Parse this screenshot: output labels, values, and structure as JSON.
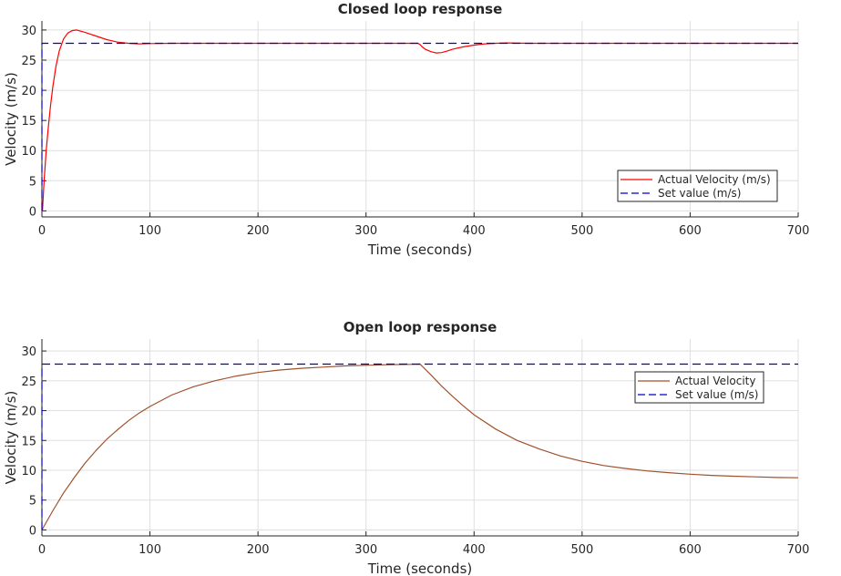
{
  "chart_data": [
    {
      "type": "line",
      "title": "Closed loop response",
      "xlabel": "Time (seconds)",
      "ylabel": "Velocity (m/s)",
      "xlim": [
        0,
        700
      ],
      "ylim": [
        -1,
        31.5
      ],
      "xticks": [
        0,
        100,
        200,
        300,
        400,
        500,
        600,
        700
      ],
      "yticks": [
        0,
        5,
        10,
        15,
        20,
        25,
        30
      ],
      "grid": true,
      "legend_position": "lower-right",
      "series": [
        {
          "name": "Actual Velocity (m/s)",
          "color": "#ff0000",
          "style": "solid",
          "x": [
            0,
            0.5,
            2,
            4,
            6,
            8,
            10,
            13,
            16,
            20,
            24,
            28,
            32,
            36,
            40,
            45,
            50,
            55,
            60,
            65,
            70,
            80,
            90,
            100,
            120,
            150,
            200,
            250,
            300,
            348,
            350,
            352,
            355,
            360,
            365,
            370,
            375,
            380,
            390,
            400,
            410,
            420,
            430,
            450,
            500,
            600,
            700
          ],
          "y": [
            0,
            0,
            5,
            10,
            14,
            17.5,
            20.5,
            24,
            26.5,
            28.5,
            29.5,
            29.9,
            30,
            29.8,
            29.6,
            29.3,
            29,
            28.7,
            28.4,
            28.2,
            28,
            27.8,
            27.7,
            27.75,
            27.8,
            27.8,
            27.8,
            27.8,
            27.8,
            27.8,
            27.6,
            27.2,
            26.8,
            26.4,
            26.2,
            26.25,
            26.5,
            26.8,
            27.2,
            27.5,
            27.7,
            27.8,
            27.85,
            27.8,
            27.8,
            27.8,
            27.8
          ]
        },
        {
          "name": "Set value (m/s)",
          "color": "#0000cc",
          "style": "dashed",
          "x": [
            0,
            0,
            700
          ],
          "y": [
            0,
            27.8,
            27.8
          ]
        }
      ]
    },
    {
      "type": "line",
      "title": "Open loop response",
      "xlabel": "Time (seconds)",
      "ylabel": "Velocity (m/s)",
      "xlim": [
        0,
        700
      ],
      "ylim": [
        -1,
        32
      ],
      "xticks": [
        0,
        100,
        200,
        300,
        400,
        500,
        600,
        700
      ],
      "yticks": [
        0,
        5,
        10,
        15,
        20,
        25,
        30
      ],
      "grid": true,
      "legend_position": "top-right",
      "series": [
        {
          "name": "Actual Velocity",
          "color": "#a0522d",
          "style": "solid",
          "x": [
            0,
            10,
            20,
            30,
            40,
            50,
            60,
            70,
            80,
            90,
            100,
            120,
            140,
            160,
            180,
            200,
            220,
            240,
            260,
            280,
            300,
            320,
            340,
            350,
            360,
            370,
            380,
            390,
            400,
            420,
            440,
            460,
            480,
            500,
            520,
            540,
            560,
            580,
            600,
            620,
            640,
            660,
            680,
            700
          ],
          "y": [
            0,
            3.2,
            6.2,
            8.8,
            11.2,
            13.3,
            15.2,
            16.8,
            18.3,
            19.6,
            20.7,
            22.6,
            24,
            25,
            25.8,
            26.4,
            26.8,
            27.1,
            27.3,
            27.5,
            27.6,
            27.7,
            27.75,
            27.8,
            26,
            24.1,
            22.4,
            20.8,
            19.3,
            16.9,
            15,
            13.6,
            12.4,
            11.5,
            10.8,
            10.3,
            9.9,
            9.6,
            9.35,
            9.15,
            9.0,
            8.9,
            8.8,
            8.75
          ]
        },
        {
          "name": "Set value (m/s)",
          "color": "#0000cc",
          "style": "dashed",
          "x": [
            0,
            0,
            700
          ],
          "y": [
            0,
            27.8,
            27.8
          ]
        }
      ]
    }
  ]
}
